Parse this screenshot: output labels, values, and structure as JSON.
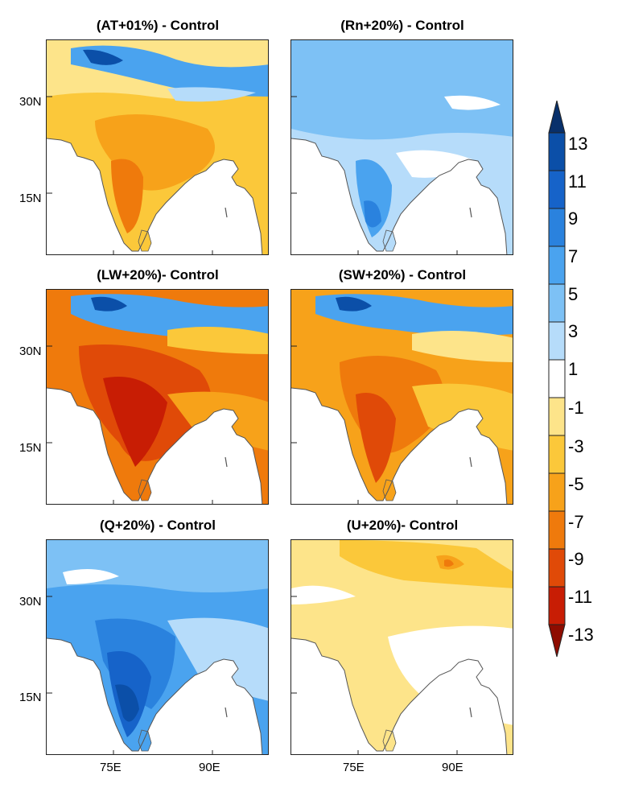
{
  "panels": [
    {
      "title": "(AT+01%) - Control",
      "scheme": "warm_moderate"
    },
    {
      "title": "(Rn+20%) - Control",
      "scheme": "cool_light"
    },
    {
      "title": "(LW+20%)- Control",
      "scheme": "warm_strong"
    },
    {
      "title": "(SW+20%) - Control",
      "scheme": "warm_medium"
    },
    {
      "title": "(Q+20%) - Control",
      "scheme": "cool_strong"
    },
    {
      "title": "(U+20%)- Control",
      "scheme": "warm_light"
    }
  ],
  "axes": {
    "lat_labels": [
      "30N",
      "15N"
    ],
    "lon_labels": [
      "75E",
      "90E"
    ]
  },
  "colorbar": {
    "labels": [
      "13",
      "11",
      "9",
      "7",
      "5",
      "3",
      "1",
      "-1",
      "-3",
      "-5",
      "-7",
      "-9",
      "-11",
      "-13"
    ],
    "colors": [
      "#08306b",
      "#0b4fa8",
      "#1663c9",
      "#2a82de",
      "#4aa3ef",
      "#7dc1f5",
      "#b6dcfa",
      "#ffffff",
      "#fde48a",
      "#fbc83a",
      "#f7a21a",
      "#ef7a0c",
      "#e04a08",
      "#c81d04",
      "#8e0c00"
    ]
  }
}
